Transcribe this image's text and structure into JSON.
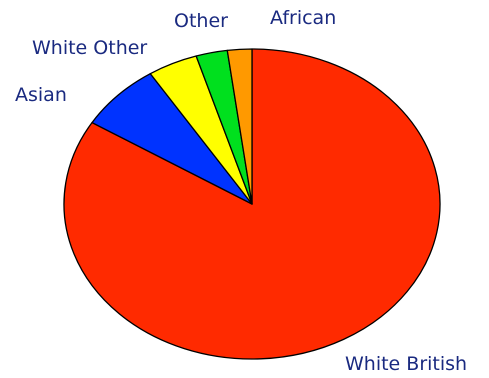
{
  "chart_data": {
    "type": "pie",
    "slices": [
      {
        "label": "White British",
        "value": 83.8,
        "color": "#ff2a00"
      },
      {
        "label": "Asian",
        "value": 7.1,
        "color": "#0033ff"
      },
      {
        "label": "White Other",
        "value": 4.3,
        "color": "#ffff00"
      },
      {
        "label": "Other",
        "value": 2.7,
        "color": "#00e01e"
      },
      {
        "label": "African",
        "value": 2.1,
        "color": "#ff9900"
      }
    ],
    "label_color": "#1a2a80",
    "legend": "none"
  }
}
